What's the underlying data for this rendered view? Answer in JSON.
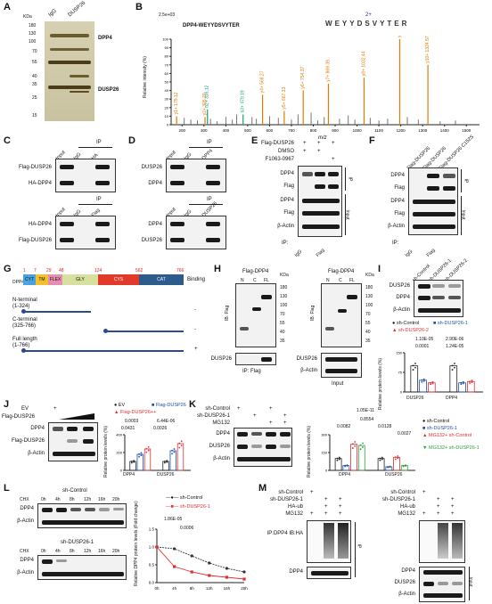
{
  "panels": {
    "A": {
      "letter": "A",
      "kda_label": "KDa",
      "lanes": [
        "IgG",
        "DUSP26"
      ],
      "markers": [
        "180",
        "130",
        "100",
        "70",
        "55",
        "40",
        "35",
        "25",
        "15"
      ],
      "band_labels": [
        "DPP4",
        "DUSP26"
      ]
    },
    "B": {
      "letter": "B",
      "scale_label": "2.5e+03",
      "peptide": "DPP4-WEYYDSVYTER",
      "charge": "2+",
      "sequence": [
        "W",
        "E",
        "Y",
        "Y",
        "D",
        "S",
        "V",
        "Y",
        "T",
        "E",
        "R"
      ],
      "y_label": "Relative intensity (%)",
      "x_label": "m/z",
      "y_ticks": [
        "0",
        "10",
        "20",
        "30",
        "40",
        "50",
        "60",
        "70",
        "80",
        "90",
        "100"
      ],
      "x_ticks": [
        "200",
        "300",
        "400",
        "500",
        "600",
        "700",
        "800",
        "900",
        "1000",
        "1100",
        "1200",
        "1300",
        "1400",
        "1500"
      ],
      "peaks": [
        {
          "label": "y1+ 175.12",
          "mz": 175,
          "int": 10,
          "color": "#e07b00"
        },
        {
          "label": "b2+ 316.12",
          "mz": 316,
          "int": 18,
          "color": "#18a080"
        },
        {
          "label": "y2+ 305.20",
          "mz": 305,
          "int": 9,
          "color": "#e07b00"
        },
        {
          "label": "b3+ 479.19",
          "mz": 479,
          "int": 12,
          "color": "#18a080"
        },
        {
          "label": "y4+ 568.27",
          "mz": 568,
          "int": 35,
          "color": "#e07b00"
        },
        {
          "label": "y5+ 667.33",
          "mz": 667,
          "int": 16,
          "color": "#e07b00"
        },
        {
          "label": "y6+ 754.37",
          "mz": 754,
          "int": 40,
          "color": "#e07b00"
        },
        {
          "label": "y7+ 869.39",
          "mz": 869,
          "int": 48,
          "color": "#e07b00"
        },
        {
          "label": "y8+ 1032.44",
          "mz": 1032,
          "int": 55,
          "color": "#e07b00"
        },
        {
          "label": "y9+ 1195.53",
          "mz": 1195,
          "int": 100,
          "color": "#e07b00"
        },
        {
          "label": "y10+ 1324.57",
          "mz": 1324,
          "int": 70,
          "color": "#e07b00"
        }
      ]
    },
    "C": {
      "letter": "C",
      "top_header": "IP",
      "top_lanes": [
        "Input",
        "IgG",
        "HA"
      ],
      "top_rows": [
        "Flag-DUSP26",
        "HA-DPP4"
      ],
      "bottom_header": "IP",
      "bottom_lanes": [
        "Input",
        "IgG",
        "Flag"
      ],
      "bottom_rows": [
        "HA-DPP4",
        "Flag-DUSP26"
      ]
    },
    "D": {
      "letter": "D",
      "top_header": "IP",
      "top_lanes": [
        "Input",
        "IgG",
        "DPP4"
      ],
      "top_rows": [
        "DUSP26",
        "DPP4"
      ],
      "bottom_header": "IP",
      "bottom_lanes": [
        "Input",
        "IgG",
        "DUSP26"
      ],
      "bottom_rows": [
        "DPP4",
        "DUSP26"
      ]
    },
    "E": {
      "letter": "E",
      "cond_rows": [
        {
          "label": "Flag-DUSP26",
          "marks": [
            "+",
            "+",
            "+"
          ]
        },
        {
          "label": "DMSO",
          "marks": [
            "+",
            "+",
            ""
          ]
        },
        {
          "label": "F1063-0967",
          "marks": [
            "",
            "",
            "+"
          ]
        }
      ],
      "rows": [
        "DPP4",
        "Flag",
        "DPP4",
        "Flag",
        "β-Actin"
      ],
      "side_ip": "IP",
      "side_input": "Input",
      "ip_label": "IP:",
      "ip_lanes": [
        "IgG",
        "Flag"
      ]
    },
    "F": {
      "letter": "F",
      "lanes": [
        "Flag-DUSP26",
        "Flag-DUSP26",
        "Flag-DUSP26 C152S"
      ],
      "rows": [
        "DPP4",
        "Flag",
        "DPP4",
        "Flag",
        "β-Actin"
      ],
      "side_ip": "IP",
      "side_input": "Input",
      "ip_label": "IP:",
      "ip_lanes": [
        "IgG",
        "Flag"
      ]
    },
    "G": {
      "letter": "G",
      "protein": "DPP4",
      "binding_label": "Binding",
      "domains": [
        {
          "name": "CYT",
          "color": "#4aa3df"
        },
        {
          "name": "TM",
          "color": "#f2c12e"
        },
        {
          "name": "FLEX",
          "color": "#e58fb0"
        },
        {
          "name": "GLY",
          "color": "#d8e0a0"
        },
        {
          "name": "CYS",
          "color": "#e23a2a"
        },
        {
          "name": "CAT",
          "color": "#2c5b8c"
        }
      ],
      "positions": [
        "1",
        "7",
        "29",
        "48",
        "124",
        "562",
        "766"
      ],
      "constructs": [
        {
          "name": "N-terminal",
          "range": "(1-324)",
          "binding": "-"
        },
        {
          "name": "C-terminal",
          "range": "(325-766)",
          "binding": "-"
        },
        {
          "name": "Full length",
          "range": "(1-766)",
          "binding": "+"
        }
      ]
    },
    "H": {
      "letter": "H",
      "left_title": "Flag-DPP4",
      "right_title": "Flag-DPP4",
      "lanes": [
        "N",
        "C",
        "FL"
      ],
      "kda_label": "KDa",
      "left_markers": [
        "180",
        "130",
        "100",
        "70",
        "55",
        "40",
        "35"
      ],
      "right_markers": [
        "180",
        "130",
        "100",
        "70",
        "55",
        "40",
        "35"
      ],
      "ib_label": "IB: Flag",
      "left_bottom_row": "DUSP26",
      "right_bottom_rows": [
        "DUSP26",
        "β-Actin"
      ],
      "left_caption": "IP: Flag",
      "right_caption": "Input"
    },
    "I": {
      "letter": "I",
      "lanes": [
        "sh-Control",
        "sh-DUSP26-1",
        "sh-DUSP26-2"
      ],
      "rows": [
        "DUSP26",
        "DPP4",
        "β-Actin"
      ],
      "legend": [
        "sh-Control",
        "sh-DUSP26-1",
        "sh-DUSP26-2"
      ],
      "pvals": [
        "1.10E-05",
        "0.0001",
        "2.90E-06",
        "1.24E-05"
      ],
      "y_label": "Relative protein levels (%)",
      "groups": [
        "DUSP26",
        "DPP4"
      ]
    },
    "J": {
      "letter": "J",
      "cond": [
        "EV",
        "+",
        "Flag-DUSP26"
      ],
      "rows": [
        "DPP4",
        "Flag-DUSP26",
        "β-Actin"
      ],
      "legend": [
        "EV",
        "Flag-DUSP26",
        "Flag-DUSP26++"
      ],
      "pvals": [
        "0.0003",
        "0.0431",
        "6.44E-06",
        "0.0026"
      ],
      "y_label": "Relative protein levels (%)",
      "groups": [
        "DPP4",
        "DUSP26"
      ]
    },
    "K": {
      "letter": "K",
      "cond_rows": [
        {
          "label": "sh-Control",
          "marks": [
            "+",
            "",
            "+",
            ""
          ]
        },
        {
          "label": "sh-DUSP26-1",
          "marks": [
            "",
            "+",
            "",
            "+"
          ]
        },
        {
          "label": "MG132",
          "marks": [
            "",
            "",
            "+",
            "+"
          ]
        }
      ],
      "rows": [
        "DPP4",
        "DUSP26",
        "β-Actin"
      ],
      "legend": [
        "sh-Control",
        "sh-DUSP26-1",
        "MG132+ sh-Control",
        "MG132+ sh-DUSP26-1"
      ],
      "pvals": [
        "1.05E-11",
        "0.8554",
        "0.0082",
        "0.0128",
        "0.0027"
      ],
      "y_label": "Relative protein levels (%)",
      "groups": [
        "DPP4",
        "DUSP26"
      ]
    },
    "L": {
      "letter": "L",
      "top_title": "sh-Control",
      "bottom_title": "sh-DUSP26-1",
      "chx_label": "CHX",
      "times": [
        "0h",
        "4h",
        "8h",
        "12h",
        "16h",
        "20h"
      ],
      "rows": [
        "DPP4",
        "β-Actin"
      ],
      "y_label": "Relative DPP4 protein levels (Fold change)",
      "legend": [
        "sh-Control",
        "sh-DUSP26-1"
      ],
      "pvals": [
        "1.86E-05",
        "0.0006"
      ]
    },
    "M": {
      "letter": "M",
      "cond_rows": [
        {
          "label": "sh-Control",
          "marks": [
            "+",
            "",
            ""
          ]
        },
        {
          "label": "sh-DUSP26-1",
          "marks": [
            "",
            "+",
            "+"
          ]
        },
        {
          "label": "HA-ub",
          "marks": [
            "",
            "+",
            "+"
          ]
        },
        {
          "label": "MG132",
          "marks": [
            "+",
            "+",
            "+"
          ]
        }
      ],
      "left_rows": [
        "IP:DPP4 IB:HA",
        "DPP4"
      ],
      "right_rows": [
        "DPP4",
        "DUSP26",
        "β-Actin"
      ],
      "side_ip": "IP",
      "side_input": "Input"
    }
  },
  "chart_data": [
    {
      "type": "bar",
      "panel": "I",
      "categories": [
        "DUSP26",
        "DPP4"
      ],
      "series": [
        {
          "name": "sh-Control",
          "values": [
            100,
            100
          ]
        },
        {
          "name": "sh-DUSP26-1",
          "values": [
            45,
            35
          ]
        },
        {
          "name": "sh-DUSP26-2",
          "values": [
            35,
            40
          ]
        }
      ],
      "ylim": [
        0,
        150
      ]
    },
    {
      "type": "bar",
      "panel": "J",
      "categories": [
        "DPP4",
        "DUSP26"
      ],
      "series": [
        {
          "name": "EV",
          "values": [
            100,
            100
          ]
        },
        {
          "name": "Flag-DUSP26",
          "values": [
            180,
            220
          ]
        },
        {
          "name": "Flag-DUSP26++",
          "values": [
            240,
            300
          ]
        }
      ],
      "ylim": [
        0,
        400
      ]
    },
    {
      "type": "bar",
      "panel": "K",
      "categories": [
        "DPP4",
        "DUSP26"
      ],
      "series": [
        {
          "name": "sh-Control",
          "values": [
            100,
            100
          ]
        },
        {
          "name": "sh-DUSP26-1",
          "values": [
            40,
            30
          ]
        },
        {
          "name": "MG132+ sh-Control",
          "values": [
            220,
            110
          ]
        },
        {
          "name": "MG132+ sh-DUSP26-1",
          "values": [
            210,
            40
          ]
        }
      ],
      "ylim": [
        0,
        300
      ]
    },
    {
      "type": "line",
      "panel": "L",
      "x": [
        0,
        4,
        8,
        12,
        16,
        20
      ],
      "series": [
        {
          "name": "sh-Control",
          "values": [
            1.0,
            0.95,
            0.75,
            0.55,
            0.4,
            0.3
          ]
        },
        {
          "name": "sh-DUSP26-1",
          "values": [
            1.0,
            0.45,
            0.3,
            0.2,
            0.15,
            0.1
          ]
        }
      ],
      "ylim": [
        0,
        1.5
      ]
    }
  ]
}
